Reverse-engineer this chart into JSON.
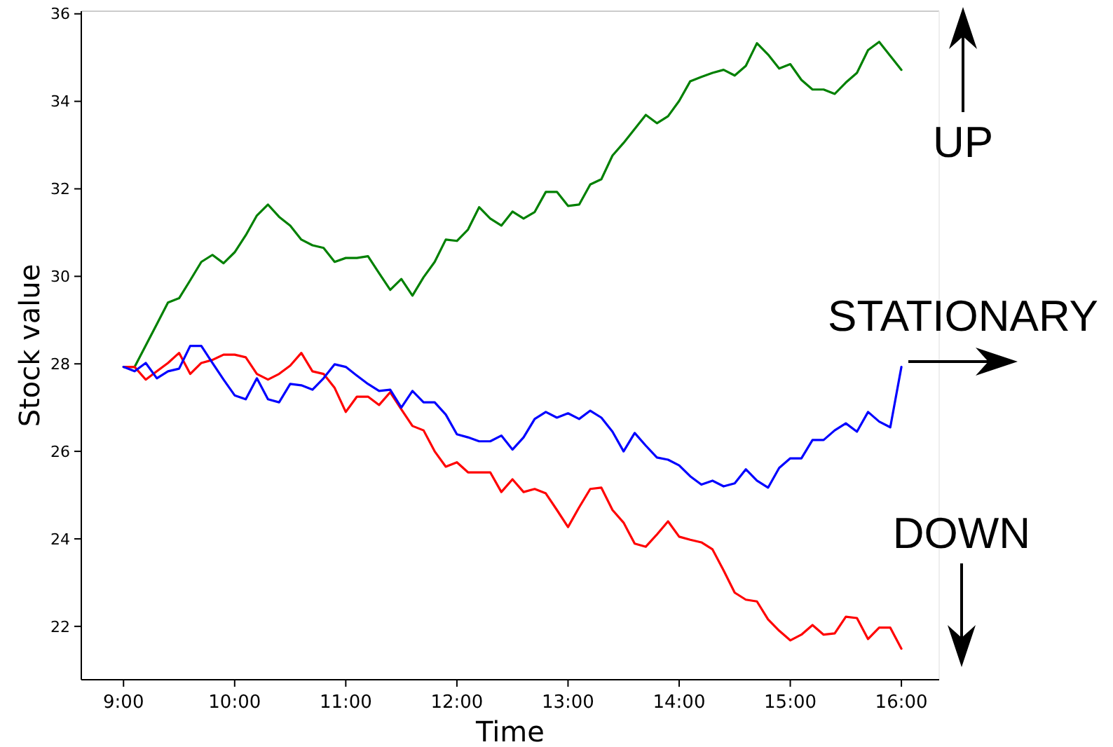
{
  "chart_data": {
    "type": "line",
    "xlabel": "Time",
    "ylabel": "Stock value",
    "x": [
      9.0,
      9.1,
      9.2,
      9.3,
      9.4,
      9.5,
      9.6,
      9.7,
      9.8,
      9.9,
      10.0,
      10.1,
      10.2,
      10.3,
      10.4,
      10.5,
      10.6,
      10.7,
      10.8,
      10.9,
      11.0,
      11.1,
      11.2,
      11.3,
      11.4,
      11.5,
      11.6,
      11.7,
      11.8,
      11.9,
      12.0,
      12.1,
      12.2,
      12.3,
      12.4,
      12.5,
      12.6,
      12.7,
      12.8,
      12.9,
      13.0,
      13.1,
      13.2,
      13.3,
      13.4,
      13.5,
      13.6,
      13.7,
      13.8,
      13.9,
      14.0,
      14.1,
      14.2,
      14.3,
      14.4,
      14.5,
      14.6,
      14.7,
      14.8,
      14.9,
      15.0,
      15.1,
      15.2,
      15.3,
      15.4,
      15.5,
      15.6,
      15.7,
      15.8,
      15.9,
      16.0
    ],
    "series": [
      {
        "color": "#008000",
        "values": [
          27.93,
          27.93,
          28.42,
          28.91,
          29.4,
          29.5,
          29.91,
          30.33,
          30.49,
          30.3,
          30.55,
          30.94,
          31.39,
          31.64,
          31.36,
          31.16,
          30.84,
          30.71,
          30.65,
          30.33,
          30.42,
          30.42,
          30.46,
          30.07,
          29.69,
          29.94,
          29.56,
          29.98,
          30.33,
          30.84,
          30.81,
          31.07,
          31.58,
          31.32,
          31.16,
          31.48,
          31.32,
          31.47,
          31.93,
          31.93,
          31.61,
          31.64,
          32.1,
          32.22,
          32.76,
          33.05,
          33.37,
          33.69,
          33.5,
          33.66,
          34.01,
          34.46,
          34.56,
          34.65,
          34.72,
          34.59,
          34.81,
          35.33,
          35.07,
          34.75,
          34.85,
          34.49,
          34.27,
          34.27,
          34.17,
          34.43,
          34.65,
          35.17,
          35.36,
          35.04,
          34.72
        ]
      },
      {
        "color": "#ff0000",
        "values": [
          27.93,
          27.93,
          27.64,
          27.83,
          28.02,
          28.25,
          27.77,
          28.02,
          28.09,
          28.21,
          28.21,
          28.15,
          27.77,
          27.64,
          27.77,
          27.96,
          28.25,
          27.83,
          27.77,
          27.45,
          26.9,
          27.25,
          27.25,
          27.06,
          27.35,
          26.96,
          26.58,
          26.48,
          26.0,
          25.65,
          25.75,
          25.52,
          25.52,
          25.52,
          25.07,
          25.36,
          25.07,
          25.14,
          25.04,
          24.66,
          24.27,
          24.72,
          25.14,
          25.17,
          24.66,
          24.37,
          23.89,
          23.82,
          24.1,
          24.4,
          24.05,
          23.98,
          23.92,
          23.76,
          23.28,
          22.77,
          22.61,
          22.57,
          22.16,
          21.9,
          21.68,
          21.81,
          22.03,
          21.81,
          21.84,
          22.22,
          22.19,
          21.71,
          21.97,
          21.97,
          21.49
        ]
      },
      {
        "color": "#0000ff",
        "values": [
          27.93,
          27.83,
          28.02,
          27.67,
          27.83,
          27.89,
          28.41,
          28.41,
          28.02,
          27.64,
          27.28,
          27.19,
          27.67,
          27.19,
          27.12,
          27.54,
          27.51,
          27.41,
          27.67,
          27.99,
          27.93,
          27.73,
          27.54,
          27.38,
          27.41,
          27.0,
          27.38,
          27.12,
          27.12,
          26.84,
          26.39,
          26.32,
          26.23,
          26.23,
          26.36,
          26.04,
          26.32,
          26.74,
          26.9,
          26.77,
          26.87,
          26.74,
          26.93,
          26.77,
          26.45,
          26.0,
          26.42,
          26.13,
          25.86,
          25.81,
          25.68,
          25.43,
          25.24,
          25.33,
          25.2,
          25.27,
          25.59,
          25.33,
          25.17,
          25.62,
          25.84,
          25.84,
          26.26,
          26.26,
          26.48,
          26.64,
          26.45,
          26.9,
          26.68,
          26.55,
          27.93
        ]
      }
    ],
    "xlim": [
      8.62,
      16.34
    ],
    "ylim": [
      20.78,
      36.06
    ],
    "xticks": [
      {
        "value": 9,
        "label": "9:00"
      },
      {
        "value": 10,
        "label": "10:00"
      },
      {
        "value": 11,
        "label": "11:00"
      },
      {
        "value": 12,
        "label": "12:00"
      },
      {
        "value": 13,
        "label": "13:00"
      },
      {
        "value": 14,
        "label": "14:00"
      },
      {
        "value": 15,
        "label": "15:00"
      },
      {
        "value": 16,
        "label": "16:00"
      }
    ],
    "yticks": [
      22,
      24,
      26,
      28,
      30,
      32,
      34,
      36
    ],
    "annotations": [
      "UP",
      "STATIONARY",
      "DOWN"
    ],
    "marker": "none",
    "line_style": "solid"
  }
}
